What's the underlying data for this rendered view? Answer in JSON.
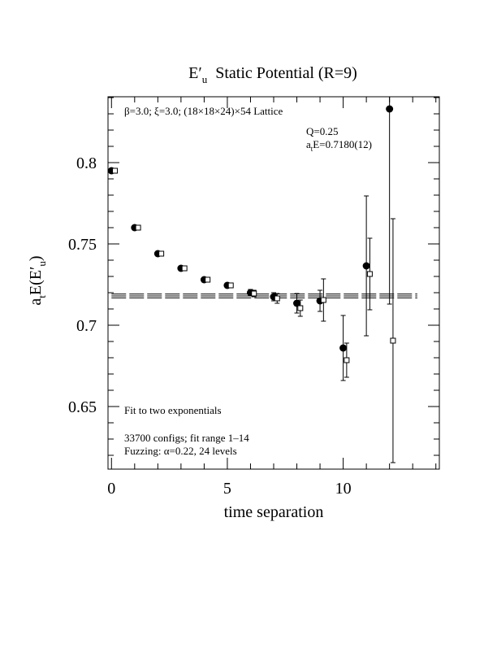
{
  "chart_data": {
    "type": "errorbar-scatter",
    "title": {
      "symbol": "E′",
      "subscript": "u",
      "text": "Static Potential (R=9)"
    },
    "x_label": "time separation",
    "y_label": {
      "prefix": "a",
      "prefix_sub": "t",
      "middle": "E(E′",
      "middle_sub": "u",
      "suffix": ")"
    },
    "annotations": {
      "lattice": "β=3.0; ξ=3.0; (18×18×24)×54 Lattice",
      "q": "Q=0.25",
      "fit_label": {
        "prefix": "a",
        "sub": "t",
        "text": "E=0.7180(12)"
      },
      "method": "Fit to two exponentials",
      "configs": "33700 configs; fit range 1–14",
      "fuzzing": "Fuzzing: α=0.22, 24 levels"
    },
    "xlim": [
      -0.15,
      14.15
    ],
    "ylim": [
      0.6115,
      0.8405
    ],
    "xticks": [
      0,
      5,
      10
    ],
    "yticks": [
      0.65,
      0.7,
      0.75,
      0.8
    ],
    "xticks_minor": [
      1,
      2,
      3,
      4,
      6,
      7,
      8,
      9,
      11,
      12,
      13,
      14
    ],
    "yticks_minor": [
      0.62,
      0.63,
      0.64,
      0.66,
      0.67,
      0.68,
      0.69,
      0.71,
      0.72,
      0.73,
      0.74,
      0.76,
      0.77,
      0.78,
      0.79,
      0.81,
      0.82,
      0.83,
      0.84
    ],
    "series": [
      {
        "marker": "filled-circle",
        "color": "#000000",
        "x": [
          0,
          1,
          2,
          3,
          4,
          5,
          6,
          7,
          8,
          9,
          10,
          11,
          12
        ],
        "values": [
          0.795,
          0.76,
          0.744,
          0.735,
          0.728,
          0.7245,
          0.72,
          0.7175,
          0.7135,
          0.715,
          0.686,
          0.7365,
          0.833
        ],
        "errors": [
          0.0008,
          0.0008,
          0.0009,
          0.001,
          0.0012,
          0.0015,
          0.002,
          0.0025,
          0.006,
          0.0065,
          0.02,
          0.043,
          0.12
        ]
      },
      {
        "marker": "open-square",
        "color": "#000000",
        "x": [
          0.15,
          1.15,
          2.15,
          3.15,
          4.15,
          5.15,
          6.15,
          7.15,
          8.15,
          9.15,
          10.15,
          11.15,
          12.15
        ],
        "values": [
          0.795,
          0.76,
          0.744,
          0.735,
          0.728,
          0.7245,
          0.7195,
          0.7165,
          0.7105,
          0.7155,
          0.6785,
          0.7315,
          0.6905
        ],
        "errors": [
          0.0008,
          0.0008,
          0.0009,
          0.001,
          0.0012,
          0.0015,
          0.002,
          0.003,
          0.005,
          0.013,
          0.0105,
          0.022,
          0.075
        ]
      }
    ],
    "fit": {
      "value": 0.718,
      "error": 0.0012,
      "x_range": [
        0,
        13.2
      ]
    }
  }
}
